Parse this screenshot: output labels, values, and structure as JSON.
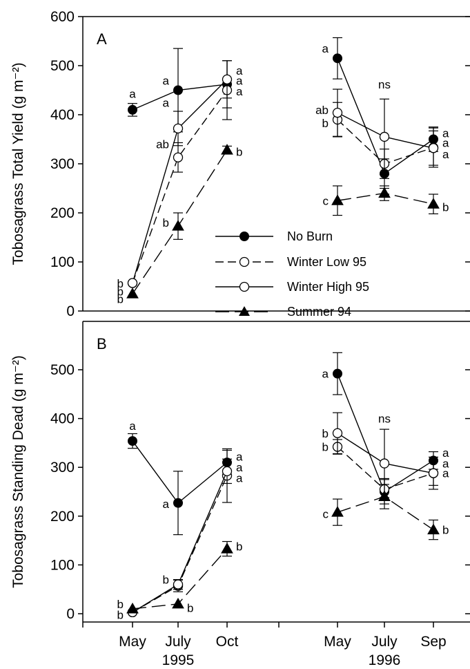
{
  "chart_data": [
    {
      "panel": "A",
      "type": "line",
      "ylabel": "Tobosagrass Total Yield (g m⁻²)",
      "ylim": [
        0,
        600
      ],
      "yticks": [
        0,
        100,
        200,
        300,
        400,
        500,
        600
      ],
      "categories": [
        "May",
        "July",
        "Oct",
        "May",
        "July",
        "Sep"
      ],
      "year_labels": [
        "1995",
        "1996"
      ],
      "series": [
        {
          "name": "No Burn",
          "marker": "filled-circle",
          "line": "solid",
          "values": [
            410,
            450,
            462,
            515,
            280,
            350
          ],
          "errors": [
            13,
            85,
            48,
            42,
            30,
            25
          ]
        },
        {
          "name": "Winter Low 95",
          "marker": "open-circle",
          "line": "dashed",
          "values": [
            57,
            313,
            450,
            390,
            300,
            333
          ],
          "errors": [
            0,
            30,
            60,
            35,
            30,
            40
          ]
        },
        {
          "name": "Winter High 95",
          "marker": "open-circle",
          "line": "solid",
          "values": [
            57,
            372,
            472,
            404,
            355,
            332
          ],
          "errors": [
            0,
            35,
            38,
            48,
            77,
            35
          ]
        },
        {
          "name": "Summer 94",
          "marker": "filled-triangle",
          "line": "longdash",
          "values": [
            35,
            173,
            328,
            225,
            240,
            218
          ],
          "errors": [
            0,
            27,
            8,
            30,
            15,
            20
          ]
        }
      ],
      "annotations": [
        {
          "cat": 0,
          "y": 443,
          "text": "a",
          "side": "above"
        },
        {
          "cat": 0,
          "y": 56,
          "text": "b",
          "side": "left"
        },
        {
          "cat": 0,
          "y": 40,
          "text": "b",
          "side": "left"
        },
        {
          "cat": 0,
          "y": 25,
          "text": "b",
          "side": "left"
        },
        {
          "cat": 1,
          "y": 470,
          "text": "a",
          "side": "left"
        },
        {
          "cat": 1,
          "y": 425,
          "text": "a",
          "side": "left"
        },
        {
          "cat": 1,
          "y": 340,
          "text": "ab",
          "side": "left"
        },
        {
          "cat": 1,
          "y": 180,
          "text": "b",
          "side": "left"
        },
        {
          "cat": 2,
          "y": 490,
          "text": "a",
          "side": "right"
        },
        {
          "cat": 2,
          "y": 470,
          "text": "a",
          "side": "right"
        },
        {
          "cat": 2,
          "y": 448,
          "text": "a",
          "side": "right"
        },
        {
          "cat": 2,
          "y": 325,
          "text": "b",
          "side": "right"
        },
        {
          "cat": 3,
          "y": 535,
          "text": "a",
          "side": "left"
        },
        {
          "cat": 3,
          "y": 410,
          "text": "ab",
          "side": "left"
        },
        {
          "cat": 3,
          "y": 383,
          "text": "b",
          "side": "left"
        },
        {
          "cat": 3,
          "y": 225,
          "text": "c",
          "side": "left"
        },
        {
          "cat": 4,
          "y": 462,
          "text": "ns",
          "side": "above"
        },
        {
          "cat": 5,
          "y": 363,
          "text": "a",
          "side": "right"
        },
        {
          "cat": 5,
          "y": 343,
          "text": "a",
          "side": "right"
        },
        {
          "cat": 5,
          "y": 320,
          "text": "a",
          "side": "right"
        },
        {
          "cat": 5,
          "y": 212,
          "text": "b",
          "side": "right"
        }
      ],
      "legend": {
        "placement": "lower-middle",
        "entries": [
          "No Burn",
          "Winter Low 95",
          "Winter High 95",
          "Summer 94"
        ]
      }
    },
    {
      "panel": "B",
      "type": "line",
      "ylabel": "Tobosagrass Standing Dead (g m⁻²)",
      "ylim": [
        0,
        560
      ],
      "yticks": [
        0,
        100,
        200,
        300,
        400,
        500
      ],
      "categories": [
        "May",
        "July",
        "Oct",
        "May",
        "July",
        "Sep"
      ],
      "year_labels": [
        "1995",
        "1996"
      ],
      "series": [
        {
          "name": "No Burn",
          "marker": "filled-circle",
          "line": "solid",
          "values": [
            354,
            227,
            310,
            492,
            250,
            314
          ],
          "errors": [
            15,
            65,
            25,
            43,
            25,
            18
          ]
        },
        {
          "name": "Winter Low 95",
          "marker": "open-circle",
          "line": "dashed",
          "values": [
            3,
            57,
            283,
            342,
            255,
            288
          ],
          "errors": [
            0,
            12,
            55,
            15,
            22,
            33
          ]
        },
        {
          "name": "Winter High 95",
          "marker": "open-circle",
          "line": "solid",
          "values": [
            3,
            60,
            292,
            370,
            308,
            288
          ],
          "errors": [
            0,
            10,
            25,
            42,
            70,
            25
          ]
        },
        {
          "name": "Summer 94",
          "marker": "filled-triangle",
          "line": "longdash",
          "values": [
            10,
            20,
            133,
            208,
            240,
            172
          ],
          "errors": [
            0,
            0,
            15,
            27,
            25,
            20
          ]
        }
      ],
      "annotations": [
        {
          "cat": 0,
          "y": 385,
          "text": "a",
          "side": "above"
        },
        {
          "cat": 0,
          "y": 20,
          "text": "b",
          "side": "left"
        },
        {
          "cat": 0,
          "y": -2,
          "text": "b",
          "side": "left"
        },
        {
          "cat": 1,
          "y": 70,
          "text": "b",
          "side": "left"
        },
        {
          "cat": 1,
          "y": 225,
          "text": "a",
          "side": "left"
        },
        {
          "cat": 1,
          "y": 12,
          "text": "b",
          "side": "right"
        },
        {
          "cat": 2,
          "y": 322,
          "text": "a",
          "side": "right"
        },
        {
          "cat": 2,
          "y": 300,
          "text": "a",
          "side": "right"
        },
        {
          "cat": 2,
          "y": 278,
          "text": "a",
          "side": "right"
        },
        {
          "cat": 2,
          "y": 138,
          "text": "b",
          "side": "right"
        },
        {
          "cat": 3,
          "y": 492,
          "text": "a",
          "side": "left"
        },
        {
          "cat": 3,
          "y": 370,
          "text": "b",
          "side": "left"
        },
        {
          "cat": 3,
          "y": 342,
          "text": "b",
          "side": "left"
        },
        {
          "cat": 3,
          "y": 205,
          "text": "c",
          "side": "left"
        },
        {
          "cat": 4,
          "y": 400,
          "text": "ns",
          "side": "above"
        },
        {
          "cat": 5,
          "y": 330,
          "text": "a",
          "side": "right"
        },
        {
          "cat": 5,
          "y": 308,
          "text": "a",
          "side": "right"
        },
        {
          "cat": 5,
          "y": 288,
          "text": "a",
          "side": "right"
        },
        {
          "cat": 5,
          "y": 172,
          "text": "b",
          "side": "right"
        }
      ]
    }
  ]
}
